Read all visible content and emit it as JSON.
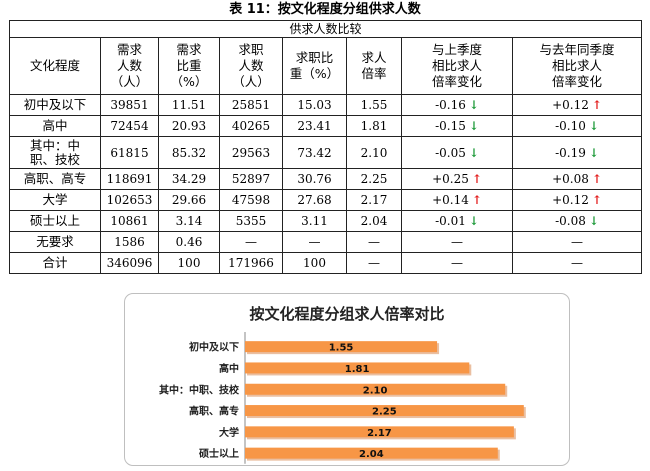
{
  "page_title": "表 11：按文化程度分组供求人数",
  "table": {
    "super_header": "供求人数比较",
    "headers": [
      "文化程度",
      "需求\n人数\n（人）",
      "需求\n比重\n（%）",
      "求职\n人数\n（人）",
      "求职比\n重（%）",
      "求人\n倍率",
      "与上季度\n相比求人\n倍率变化",
      "与去年同季度\n相比求人\n倍率变化"
    ],
    "rows": [
      {
        "cat": "初中及以下",
        "demand": "39851",
        "demand_pct": "11.51",
        "seekers": "25851",
        "seekers_pct": "15.03",
        "ratio": "1.55",
        "chg_q": "-0.16",
        "chg_q_dir": "down",
        "chg_y": "+0.12",
        "chg_y_dir": "up"
      },
      {
        "cat": "高中",
        "demand": "72454",
        "demand_pct": "20.93",
        "seekers": "40265",
        "seekers_pct": "23.41",
        "ratio": "1.81",
        "chg_q": "-0.15",
        "chg_q_dir": "down",
        "chg_y": "-0.10",
        "chg_y_dir": "down"
      },
      {
        "cat": "其中：中\n职、技校",
        "demand": "61815",
        "demand_pct": "85.32",
        "seekers": "29563",
        "seekers_pct": "73.42",
        "ratio": "2.10",
        "chg_q": "-0.05",
        "chg_q_dir": "down",
        "chg_y": "-0.19",
        "chg_y_dir": "down"
      },
      {
        "cat": "高职、高专",
        "demand": "118691",
        "demand_pct": "34.29",
        "seekers": "52897",
        "seekers_pct": "30.76",
        "ratio": "2.25",
        "chg_q": "+0.25",
        "chg_q_dir": "up",
        "chg_y": "+0.08",
        "chg_y_dir": "up"
      },
      {
        "cat": "大学",
        "demand": "102653",
        "demand_pct": "29.66",
        "seekers": "47598",
        "seekers_pct": "27.68",
        "ratio": "2.17",
        "chg_q": "+0.14",
        "chg_q_dir": "up",
        "chg_y": "+0.12",
        "chg_y_dir": "up"
      },
      {
        "cat": "硕士以上",
        "demand": "10861",
        "demand_pct": "3.14",
        "seekers": "5355",
        "seekers_pct": "3.11",
        "ratio": "2.04",
        "chg_q": "-0.01",
        "chg_q_dir": "down",
        "chg_y": "-0.08",
        "chg_y_dir": "down"
      },
      {
        "cat": "无要求",
        "demand": "1586",
        "demand_pct": "0.46",
        "seekers": "—",
        "seekers_pct": "—",
        "ratio": "—",
        "chg_q": "—",
        "chg_q_dir": "",
        "chg_y": "—",
        "chg_y_dir": ""
      },
      {
        "cat": "合计",
        "demand": "346096",
        "demand_pct": "100",
        "seekers": "171966",
        "seekers_pct": "100",
        "ratio": "—",
        "chg_q": "—",
        "chg_q_dir": "",
        "chg_y": "—",
        "chg_y_dir": ""
      }
    ]
  },
  "chart_data": {
    "type": "bar",
    "orientation": "horizontal",
    "title": "按文化程度分组求人倍率对比",
    "categories": [
      "初中及以下",
      "高中",
      "其中：中职、技校",
      "高职、高专",
      "大学",
      "硕士以上"
    ],
    "values": [
      1.55,
      1.81,
      2.1,
      2.25,
      2.17,
      2.04
    ],
    "data_labels": [
      "1.55",
      "1.81",
      "2.10",
      "2.25",
      "2.17",
      "2.04"
    ],
    "xlim": [
      0,
      2.3
    ],
    "grid": false,
    "bar_color": "#f79646",
    "bar_shadow_color": "#d98a54"
  }
}
